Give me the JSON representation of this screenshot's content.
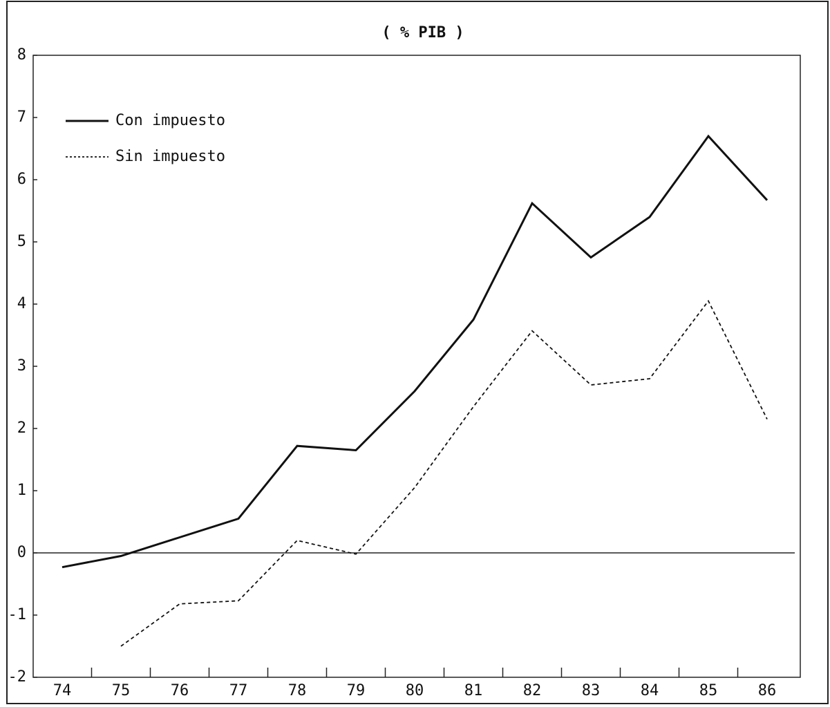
{
  "chart_data": {
    "type": "line",
    "title": "( % PIB )",
    "categories": [
      "74",
      "75",
      "76",
      "77",
      "78",
      "79",
      "80",
      "81",
      "82",
      "83",
      "84",
      "85",
      "86"
    ],
    "series": [
      {
        "name": "Con impuesto",
        "color": "#111111",
        "dash": "solid",
        "values": [
          -0.23,
          -0.05,
          0.25,
          0.55,
          1.72,
          1.65,
          2.6,
          3.75,
          5.62,
          4.75,
          5.4,
          6.7,
          5.67
        ]
      },
      {
        "name": "Sin impuesto",
        "color": "#111111",
        "dash": "dashed",
        "values": [
          null,
          -1.5,
          -0.82,
          -0.77,
          0.2,
          -0.02,
          1.05,
          2.35,
          3.57,
          2.7,
          2.8,
          4.05,
          2.15
        ]
      }
    ],
    "ylim": [
      -2,
      8
    ],
    "yticks": [
      8,
      7,
      6,
      5,
      4,
      3,
      2,
      1,
      0,
      -1,
      -2
    ],
    "grid": false,
    "legend": "upper-left"
  }
}
